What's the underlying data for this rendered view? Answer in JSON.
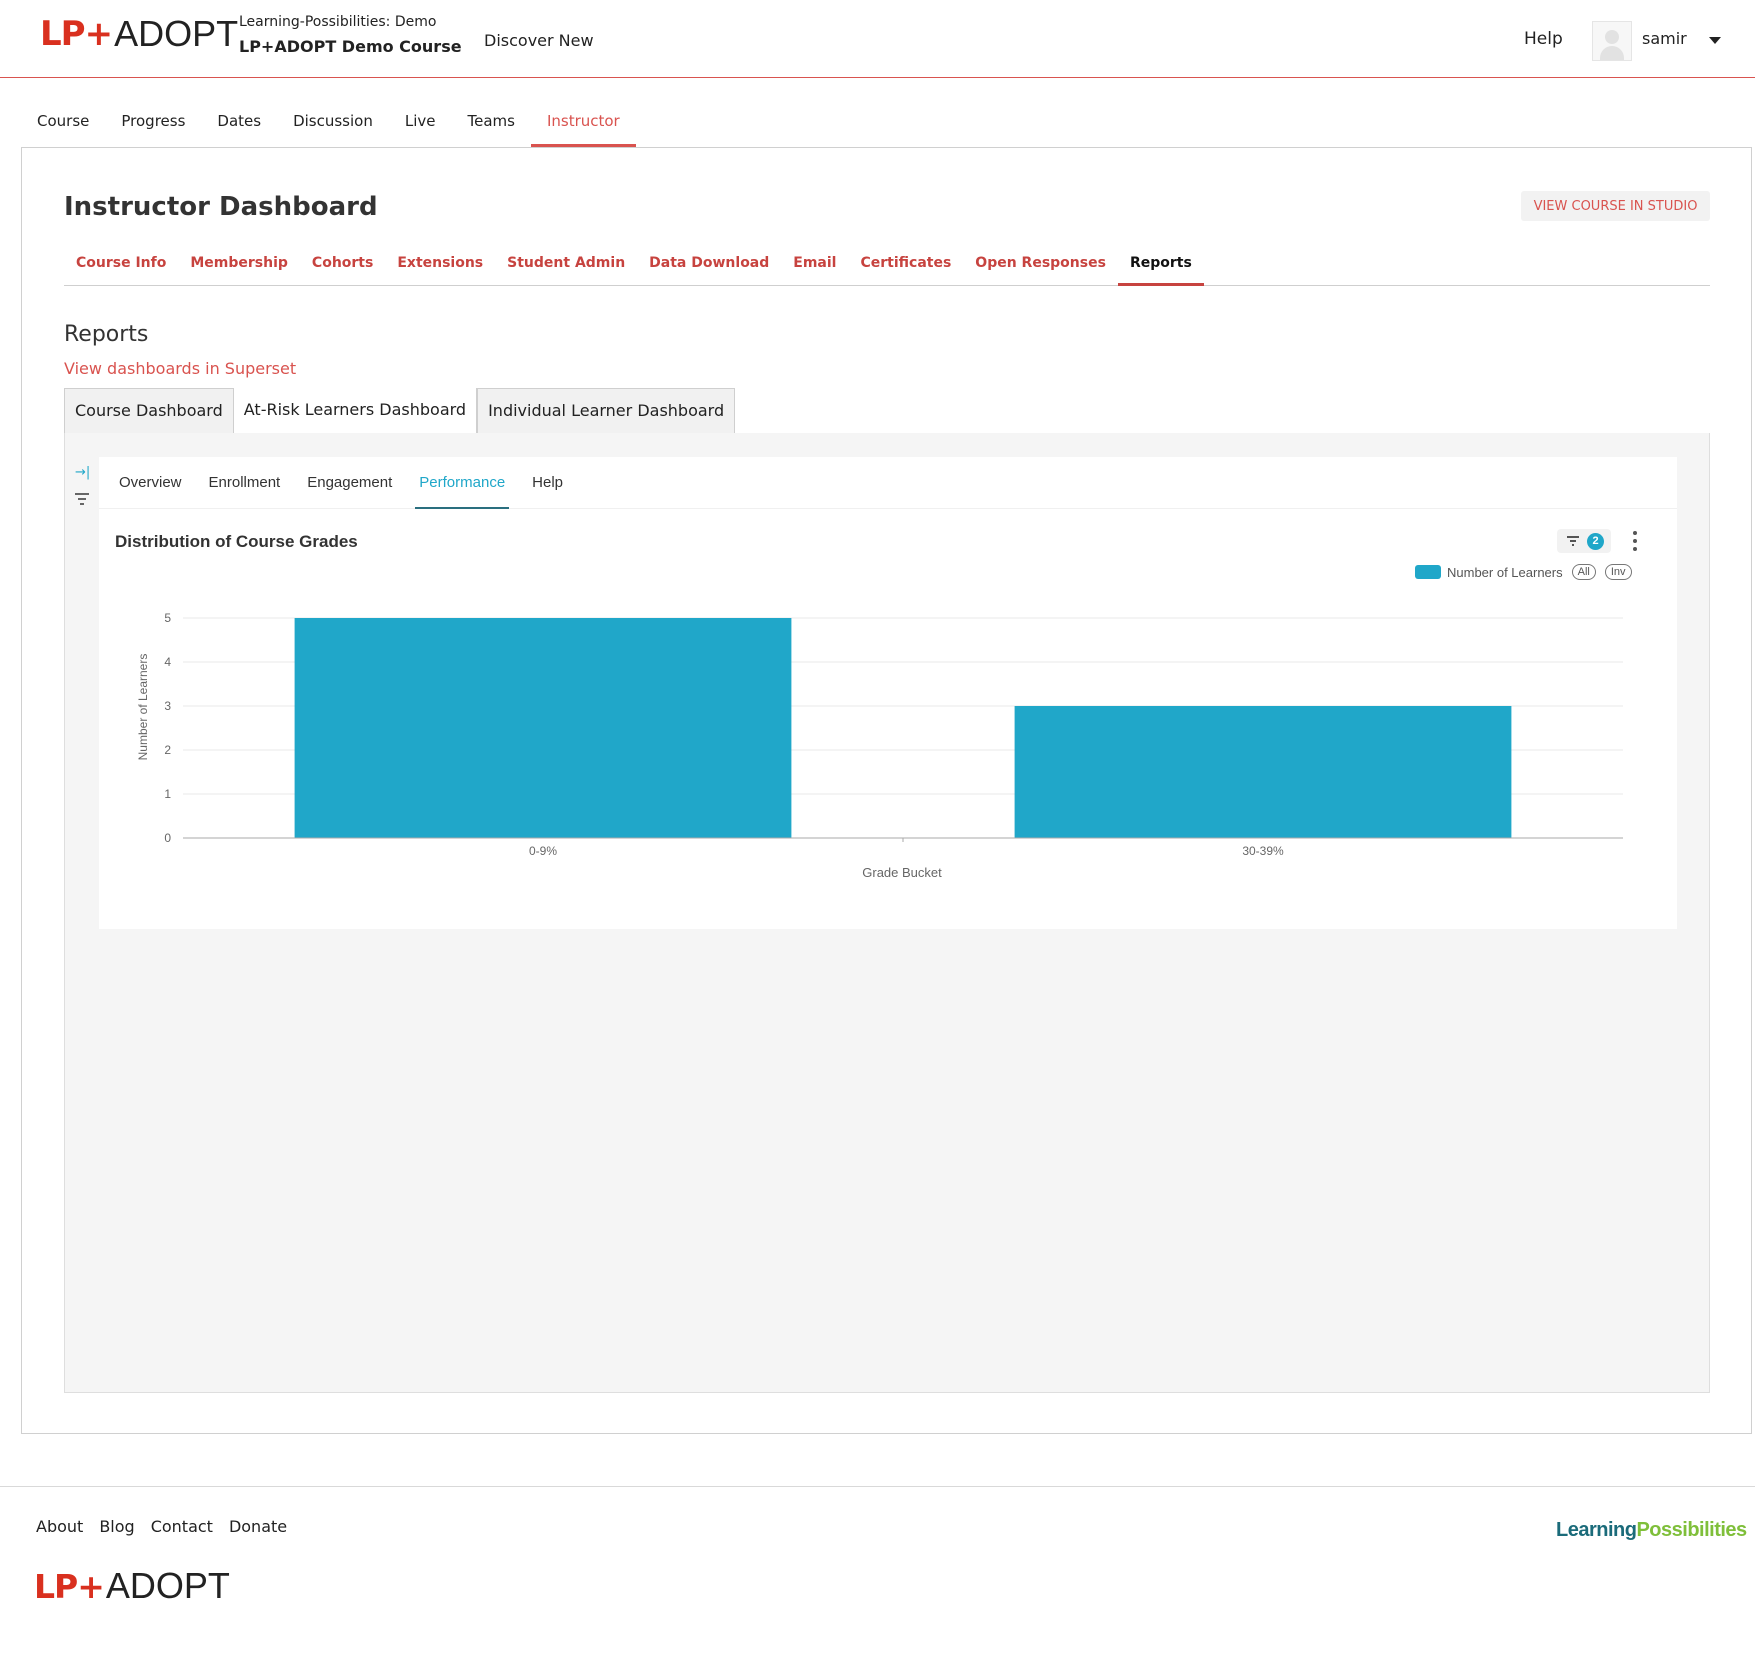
{
  "brand": {
    "logo_lp": "LP+",
    "logo_adopt": "ADOPT",
    "footer_brand_a": "Learning",
    "footer_brand_b": "Possibilities"
  },
  "header": {
    "course_org": "Learning-Possibilities: Demo",
    "course_name": "LP+ADOPT Demo Course",
    "discover": "Discover New",
    "help": "Help",
    "username": "samir"
  },
  "course_tabs": [
    "Course",
    "Progress",
    "Dates",
    "Discussion",
    "Live",
    "Teams",
    "Instructor"
  ],
  "dashboard": {
    "title": "Instructor Dashboard",
    "studio_button": "VIEW COURSE IN STUDIO",
    "tabs": [
      "Course Info",
      "Membership",
      "Cohorts",
      "Extensions",
      "Student Admin",
      "Data Download",
      "Email",
      "Certificates",
      "Open Responses",
      "Reports"
    ],
    "active_tab": "Reports"
  },
  "reports": {
    "heading": "Reports",
    "superset_link": "View dashboards in Superset",
    "dashboard_tabs": [
      "Course Dashboard",
      "At-Risk Learners Dashboard",
      "Individual Learner Dashboard"
    ],
    "active_dashboard": "At-Risk Learners Dashboard",
    "sub_tabs": [
      "Overview",
      "Enrollment",
      "Engagement",
      "Performance",
      "Help"
    ],
    "active_sub_tab": "Performance",
    "filter_count": "2"
  },
  "chart_data": {
    "type": "bar",
    "title": "Distribution of Course Grades",
    "categories": [
      "0-9%",
      "30-39%"
    ],
    "series": [
      {
        "name": "Number of Learners",
        "values": [
          5,
          3
        ],
        "color": "#20a7c9"
      }
    ],
    "xlabel": "Grade Bucket",
    "ylabel": "Number of Learners",
    "ylim": [
      0,
      5
    ],
    "yticks": [
      0,
      1,
      2,
      3,
      4,
      5
    ],
    "grid": true,
    "legend_position": "top-right",
    "legend_controls": [
      "All",
      "Inv"
    ]
  },
  "footer": {
    "links": [
      "About",
      "Blog",
      "Contact",
      "Donate"
    ]
  },
  "colors": {
    "accent": "#d9534f",
    "chart": "#20a7c9"
  }
}
